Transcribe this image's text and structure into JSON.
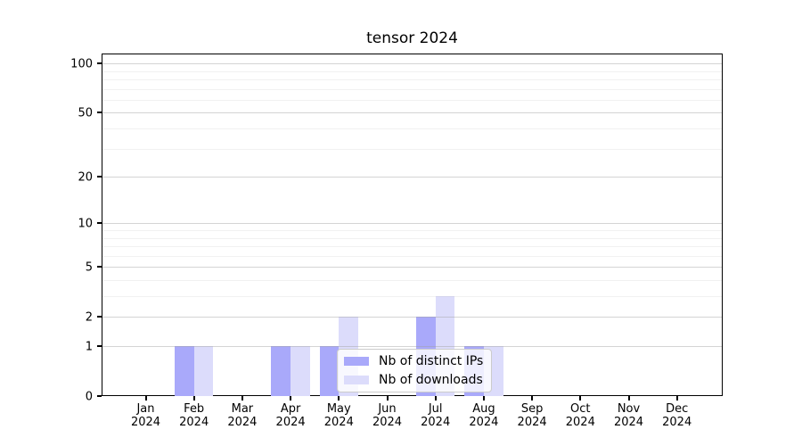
{
  "chart_data": {
    "type": "bar",
    "title": "tensor 2024",
    "categories": [
      {
        "line1": "Jan",
        "line2": "2024"
      },
      {
        "line1": "Feb",
        "line2": "2024"
      },
      {
        "line1": "Mar",
        "line2": "2024"
      },
      {
        "line1": "Apr",
        "line2": "2024"
      },
      {
        "line1": "May",
        "line2": "2024"
      },
      {
        "line1": "Jun",
        "line2": "2024"
      },
      {
        "line1": "Jul",
        "line2": "2024"
      },
      {
        "line1": "Aug",
        "line2": "2024"
      },
      {
        "line1": "Sep",
        "line2": "2024"
      },
      {
        "line1": "Oct",
        "line2": "2024"
      },
      {
        "line1": "Nov",
        "line2": "2024"
      },
      {
        "line1": "Dec",
        "line2": "2024"
      }
    ],
    "series": [
      {
        "name": "Nb of distinct IPs",
        "color": "#a9a9fa",
        "values": [
          0,
          1,
          0,
          1,
          1,
          0,
          2,
          1,
          0,
          0,
          0,
          0
        ]
      },
      {
        "name": "Nb of downloads",
        "color": "#dcdcfb",
        "values": [
          0,
          1,
          0,
          1,
          2,
          0,
          3,
          1,
          0,
          0,
          0,
          0
        ]
      }
    ],
    "xlabel": "",
    "ylabel": "",
    "y_axis": {
      "scale": "log1p",
      "ticks": [
        0,
        1,
        2,
        5,
        10,
        20,
        50,
        100
      ],
      "minor_ticks": [
        3,
        4,
        6,
        7,
        8,
        9,
        30,
        40,
        60,
        70,
        80,
        90
      ],
      "ylim": [
        0,
        115
      ]
    },
    "grid": true,
    "legend": {
      "position": "lower center",
      "frame": true
    },
    "colors": {
      "background": "#ffffff",
      "spine": "#000000",
      "major_grid": "#d9d9d9",
      "minor_grid": "#eeeeee",
      "text": "#000000"
    }
  }
}
